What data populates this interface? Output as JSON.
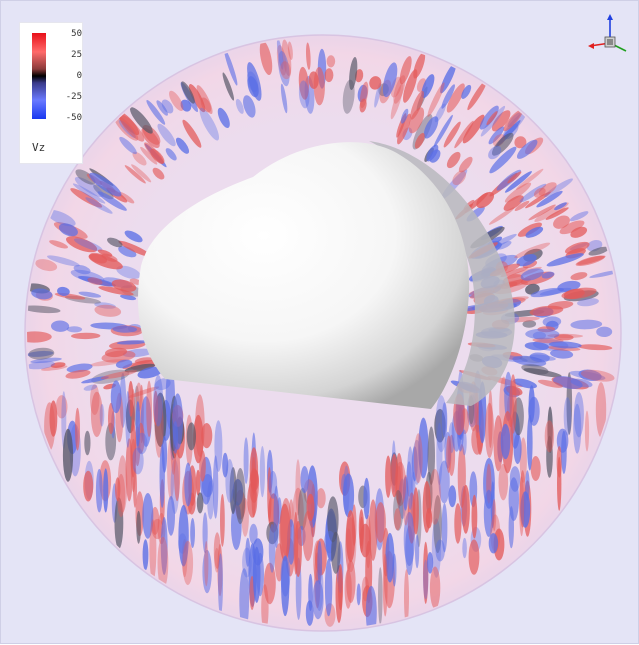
{
  "colorbar": {
    "variable_label": "Vz",
    "ticks": [
      "50",
      "25",
      "0",
      "-25",
      "-50"
    ],
    "max_color": "#e8101a",
    "mid_color": "#000000",
    "min_color": "#1838f0"
  },
  "scene": {
    "background_color": "#e4e4f6",
    "positive_color": "#e35a5a",
    "negative_color": "#5a6ee6",
    "inner_sphere_color": "#ffffff"
  },
  "axes_widget": {
    "icon": "orientation-axes-icon",
    "x_color": "#e02020",
    "y_color": "#20a020",
    "z_color": "#2040e0"
  }
}
